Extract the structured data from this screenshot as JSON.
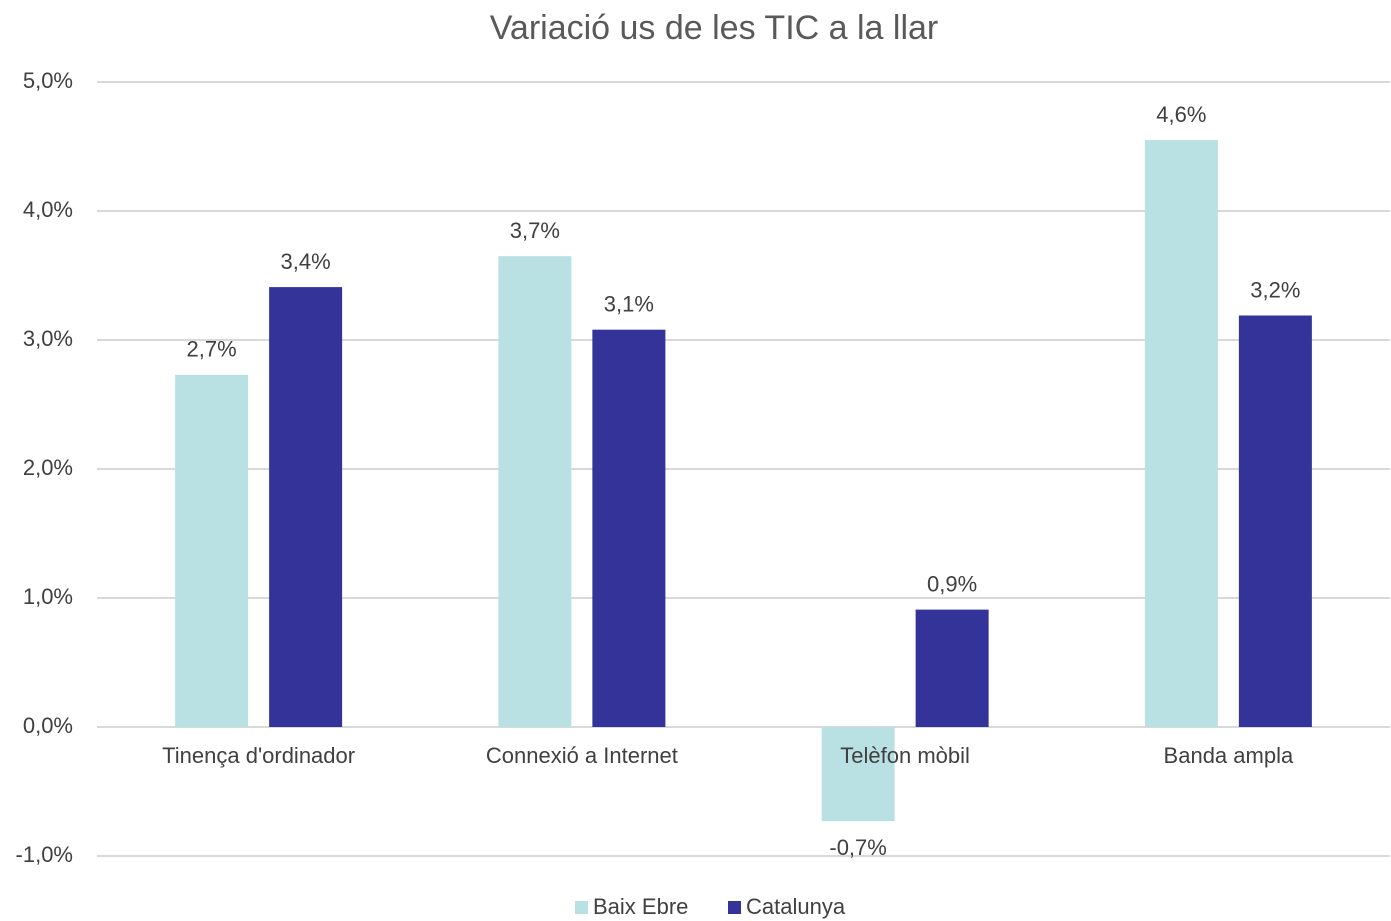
{
  "chart_data": {
    "type": "bar",
    "title": "Variació us de les TIC a la llar",
    "categories": [
      "Tinença d'ordinador",
      "Connexió a Internet",
      "Telèfon mòbil",
      "Banda ampla"
    ],
    "series": [
      {
        "name": "Baix Ebre",
        "color": "#b9e0e3",
        "values": [
          2.73,
          3.65,
          -0.73,
          4.55
        ],
        "value_labels": [
          "2,7%",
          "3,7%",
          "-0,7%",
          "4,6%"
        ]
      },
      {
        "name": "Catalunya",
        "color": "#333399",
        "values": [
          3.41,
          3.08,
          0.91,
          3.19
        ],
        "value_labels": [
          "3,4%",
          "3,1%",
          "0,9%",
          "3,2%"
        ]
      }
    ],
    "ylim": [
      -1,
      5
    ],
    "yticks": [
      {
        "value": -1,
        "label": "-1,0%"
      },
      {
        "value": 0,
        "label": "0,0%"
      },
      {
        "value": 1,
        "label": "1,0%"
      },
      {
        "value": 2,
        "label": "2,0%"
      },
      {
        "value": 3,
        "label": "3,0%"
      },
      {
        "value": 4,
        "label": "4,0%"
      },
      {
        "value": 5,
        "label": "5,0%"
      }
    ],
    "grid": true,
    "legend": "bottom"
  }
}
